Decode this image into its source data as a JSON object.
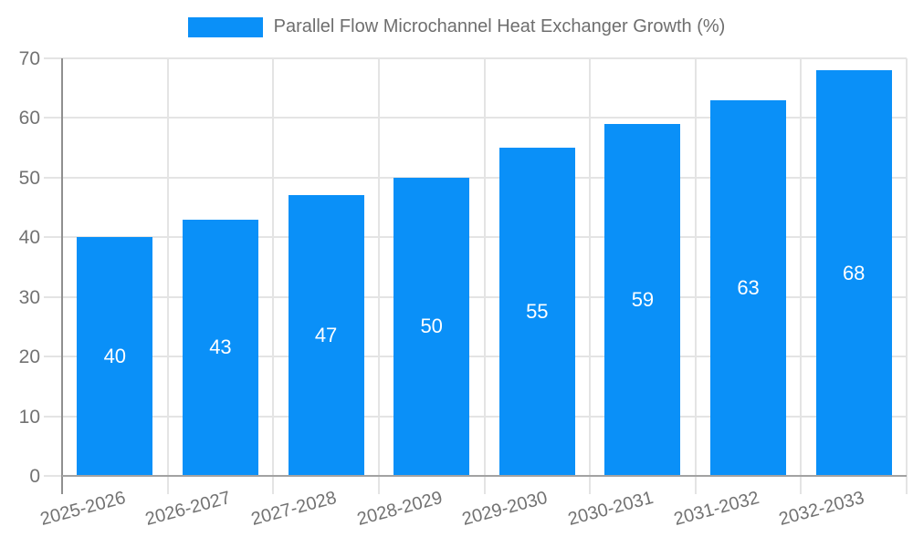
{
  "colors": {
    "bar": "#0a90f8",
    "bar_label": "#ffffff",
    "axis_text": "#727272",
    "legend_text": "#6e6e6e",
    "gridline": "#e4e4e4",
    "axis_line_y": "#8f8f8f",
    "axis_line_x": "#a2a2a2",
    "background": "#ffffff"
  },
  "chart_data": {
    "type": "bar",
    "title": "Parallel Flow Microchannel Heat Exchanger Growth (%)",
    "categories": [
      "2025-2026",
      "2026-2027",
      "2027-2028",
      "2028-2029",
      "2029-2030",
      "2030-2031",
      "2031-2032",
      "2032-2033"
    ],
    "values": [
      40,
      43,
      47,
      50,
      55,
      59,
      63,
      68
    ],
    "xlabel": "",
    "ylabel": "",
    "ylim": [
      0,
      70
    ],
    "yticks": [
      0,
      10,
      20,
      30,
      40,
      50,
      60,
      70
    ],
    "grid": true,
    "legend_position": "top-center",
    "bar_value_labels": "inside-middle",
    "x_tick_rotation_deg": -15
  }
}
